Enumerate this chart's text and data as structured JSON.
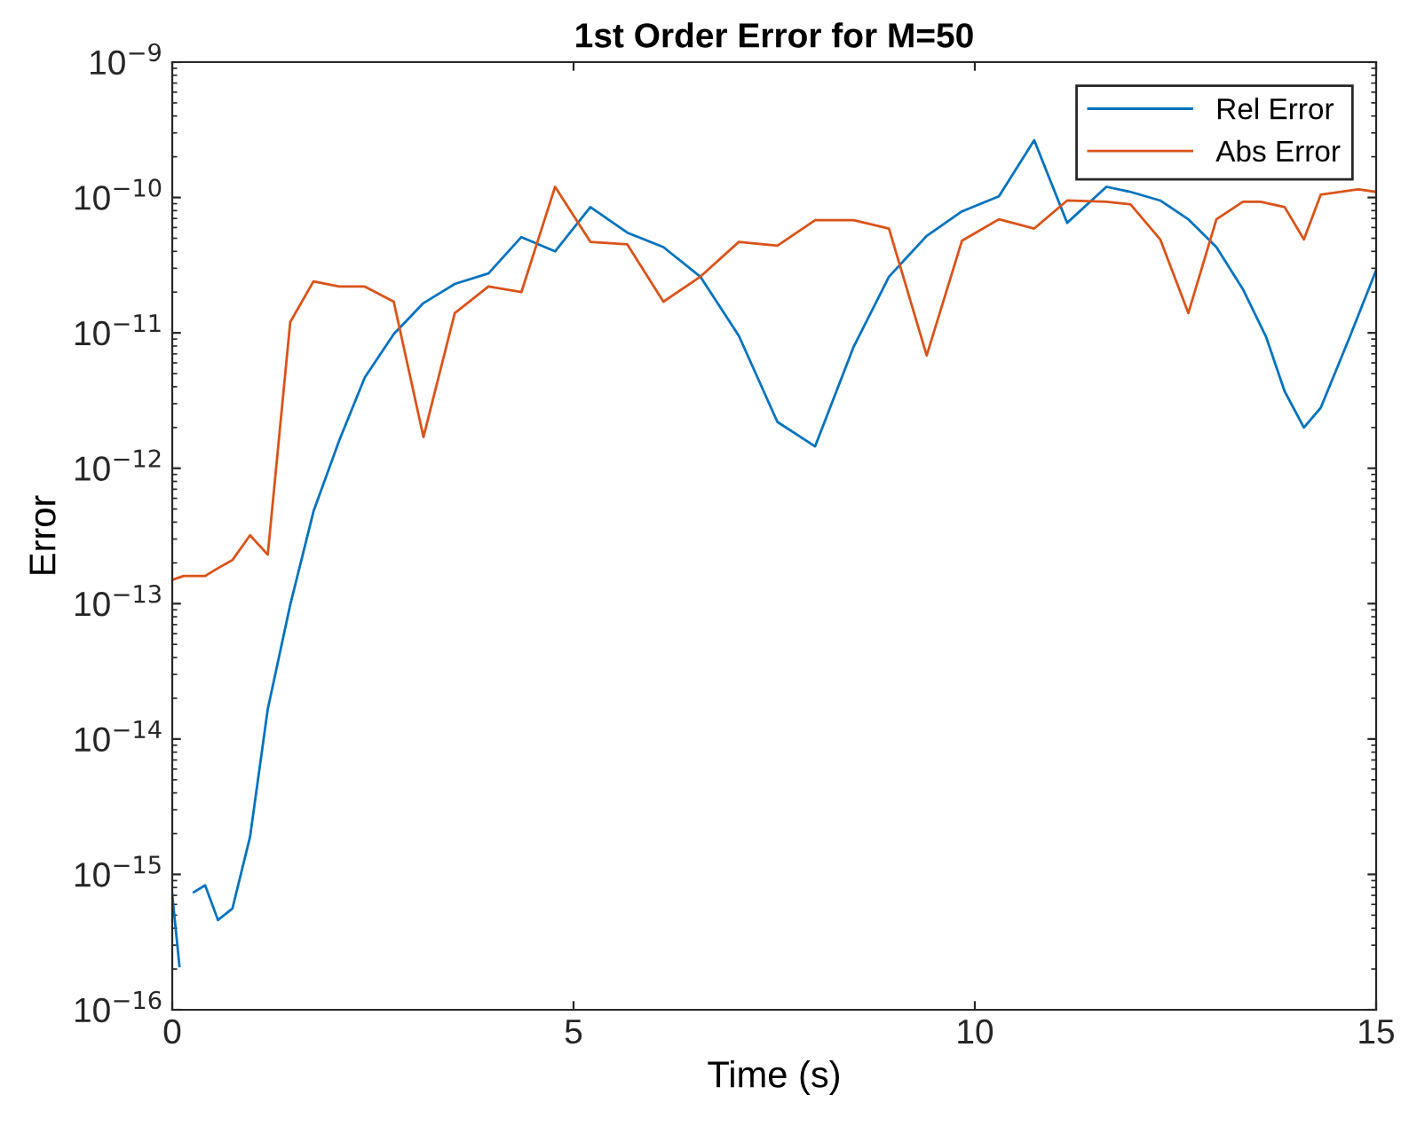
{
  "chart_data": {
    "type": "line",
    "title": "1st Order Error for M=50",
    "xlabel": "Time (s)",
    "ylabel": "Error",
    "log": "y",
    "grid": false,
    "legend": "top right",
    "line_style": "solid",
    "marker": "none",
    "xlim": [
      0,
      15
    ],
    "xticks": [
      0,
      5,
      10,
      15
    ],
    "ylim": [
      1e-16,
      1e-09
    ],
    "yticks": [
      {
        "value": 1e-16,
        "label": "10$^{−16}$"
      },
      {
        "value": 1e-15,
        "label": "10$^{−15}$"
      },
      {
        "value": 1e-14,
        "label": "10$^{−14}$"
      },
      {
        "value": 1e-13,
        "label": "10$^{−13}$"
      },
      {
        "value": 1e-12,
        "label": "10$^{−12}$"
      },
      {
        "value": 1e-11,
        "label": "10$^{−11}$"
      },
      {
        "value": 1e-10,
        "label": "10$^{−10}$"
      },
      {
        "value": 1e-09,
        "label": "10$^{−9}$"
      }
    ],
    "series": [
      {
        "name": "Rel Error",
        "color": "#0072bd",
        "x": [
          0,
          0.09,
          0.2,
          0.27,
          0.41,
          0.57,
          0.75,
          0.97,
          1.19,
          1.47,
          1.76,
          2.08,
          2.4,
          2.76,
          3.13,
          3.52,
          3.94,
          4.35,
          4.77,
          5.21,
          5.67,
          6.12,
          6.58,
          7.06,
          7.54,
          8.01,
          8.49,
          8.93,
          9.4,
          9.84,
          10.3,
          10.74,
          11.15,
          11.64,
          11.94,
          12.31,
          12.66,
          13.01,
          13.34,
          13.63,
          13.86,
          14.1,
          14.31,
          14.67,
          15
        ],
        "values": [
          7.1e-16,
          2.1e-16,
          null,
          7.4e-16,
          8.3e-16,
          4.6e-16,
          5.6e-16,
          1.9e-15,
          1.66e-14,
          9.8e-14,
          4.8e-13,
          1.6e-12,
          4.7e-12,
          9.8e-12,
          1.66e-11,
          2.3e-11,
          2.75e-11,
          5.1e-11,
          4e-11,
          8.5e-11,
          5.5e-11,
          4.3e-11,
          2.6e-11,
          9.5e-12,
          2.2e-12,
          1.45e-12,
          7.9e-12,
          2.6e-11,
          5.2e-11,
          7.9e-11,
          1.02e-10,
          2.65e-10,
          6.5e-11,
          1.2e-10,
          1.1e-10,
          9.5e-11,
          6.9e-11,
          4.3e-11,
          2.1e-11,
          9.3e-12,
          3.7e-12,
          2e-12,
          2.8e-12,
          9.3e-12,
          2.9e-11
        ]
      },
      {
        "name": "Abs Error",
        "color": "#d95319",
        "x": [
          0,
          0.14,
          0.29,
          0.41,
          0.55,
          0.75,
          0.97,
          1.19,
          1.47,
          1.76,
          2.08,
          2.4,
          2.76,
          3.13,
          3.52,
          3.94,
          4.35,
          4.77,
          5.21,
          5.67,
          6.12,
          6.58,
          7.06,
          7.54,
          8.01,
          8.49,
          8.93,
          9.4,
          9.84,
          10.3,
          10.74,
          11.15,
          11.64,
          11.94,
          12.31,
          12.66,
          13.01,
          13.34,
          13.56,
          13.86,
          14.1,
          14.31,
          14.78,
          15
        ],
        "values": [
          1.5e-13,
          1.6e-13,
          1.6e-13,
          1.6e-13,
          1.8e-13,
          2.1e-13,
          3.2e-13,
          2.3e-13,
          1.2e-11,
          2.4e-11,
          2.2e-11,
          2.2e-11,
          1.7e-11,
          1.7e-12,
          1.4e-11,
          2.2e-11,
          2e-11,
          1.2e-10,
          4.7e-11,
          4.5e-11,
          1.7e-11,
          2.6e-11,
          4.7e-11,
          4.4e-11,
          6.8e-11,
          6.8e-11,
          5.9e-11,
          6.8e-12,
          4.8e-11,
          6.9e-11,
          5.9e-11,
          9.5e-11,
          9.3e-11,
          8.9e-11,
          4.9e-11,
          1.4e-11,
          6.9e-11,
          9.3e-11,
          9.3e-11,
          8.5e-11,
          4.9e-11,
          1.05e-10,
          1.15e-10,
          1.1e-10
        ]
      }
    ]
  }
}
